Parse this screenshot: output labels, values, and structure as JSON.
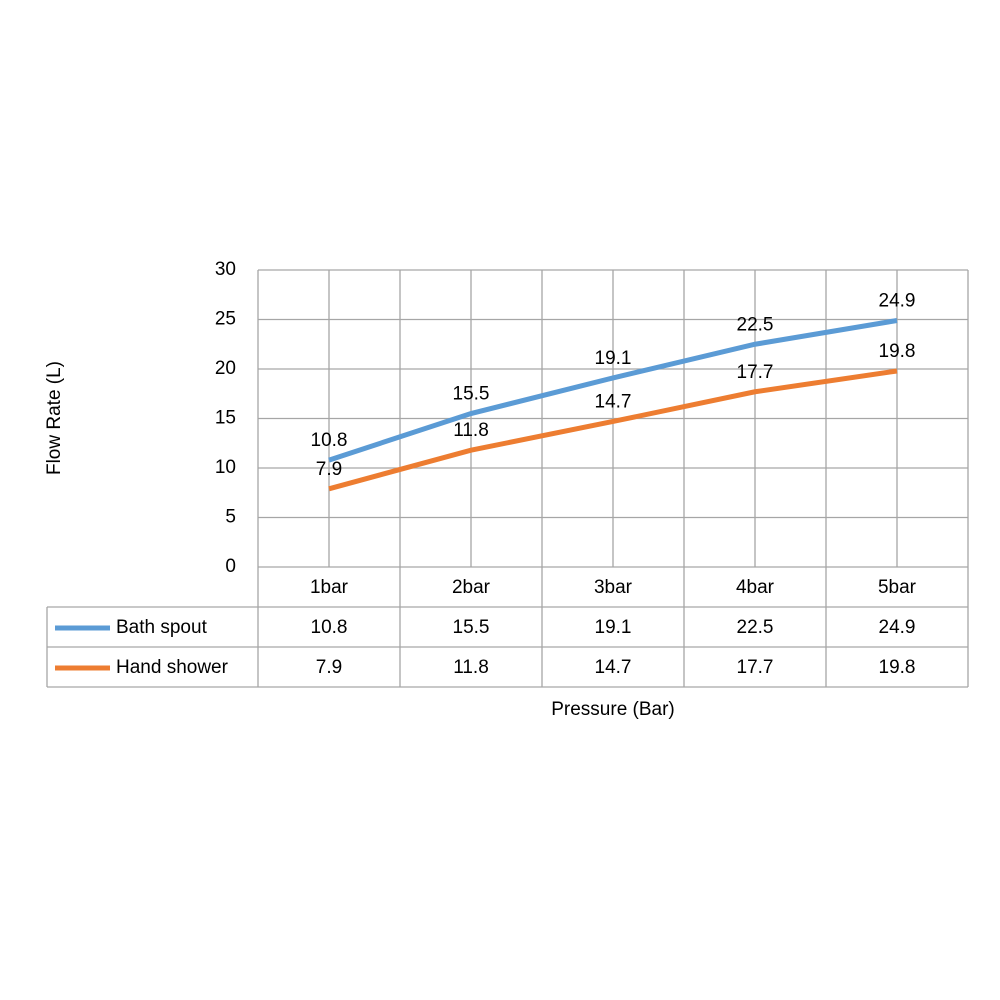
{
  "chart_data": {
    "type": "line",
    "y_label": "Flow Rate (L)",
    "x_label": "Pressure (Bar)",
    "categories": [
      "1bar",
      "2bar",
      "3bar",
      "4bar",
      "5bar"
    ],
    "series": [
      {
        "name": "Bath spout",
        "color": "#5b9bd5",
        "values": [
          10.8,
          15.5,
          19.1,
          22.5,
          24.9
        ]
      },
      {
        "name": "Hand shower",
        "color": "#ed7d31",
        "values": [
          7.9,
          11.8,
          14.7,
          17.7,
          19.8
        ]
      }
    ],
    "ylim": [
      0,
      30
    ],
    "yticks": [
      0,
      5,
      10,
      15,
      20,
      25,
      30
    ],
    "grid": true,
    "data_table": true
  }
}
